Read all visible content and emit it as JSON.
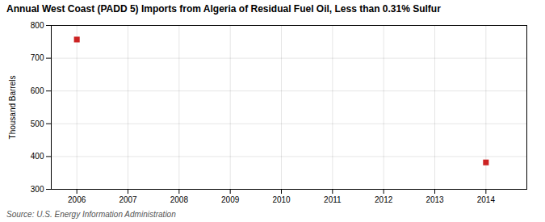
{
  "chart_data": {
    "type": "scatter",
    "title": "Annual West Coast (PADD 5) Imports from Algeria of Residual Fuel Oil, Less than 0.31% Sulfur",
    "ylabel": "Thousand Barrels",
    "source": "Source: U.S. Energy Information Administration",
    "x": [
      2006,
      2014
    ],
    "values": [
      757,
      382
    ],
    "color": "#cc2222",
    "marker": "square",
    "xlim": [
      2005.5,
      2014.8
    ],
    "ylim": [
      300,
      800
    ],
    "xticks": [
      2006,
      2007,
      2008,
      2009,
      2010,
      2011,
      2012,
      2013,
      2014
    ],
    "yticks": [
      300,
      400,
      500,
      600,
      700,
      800
    ],
    "grid": true
  }
}
